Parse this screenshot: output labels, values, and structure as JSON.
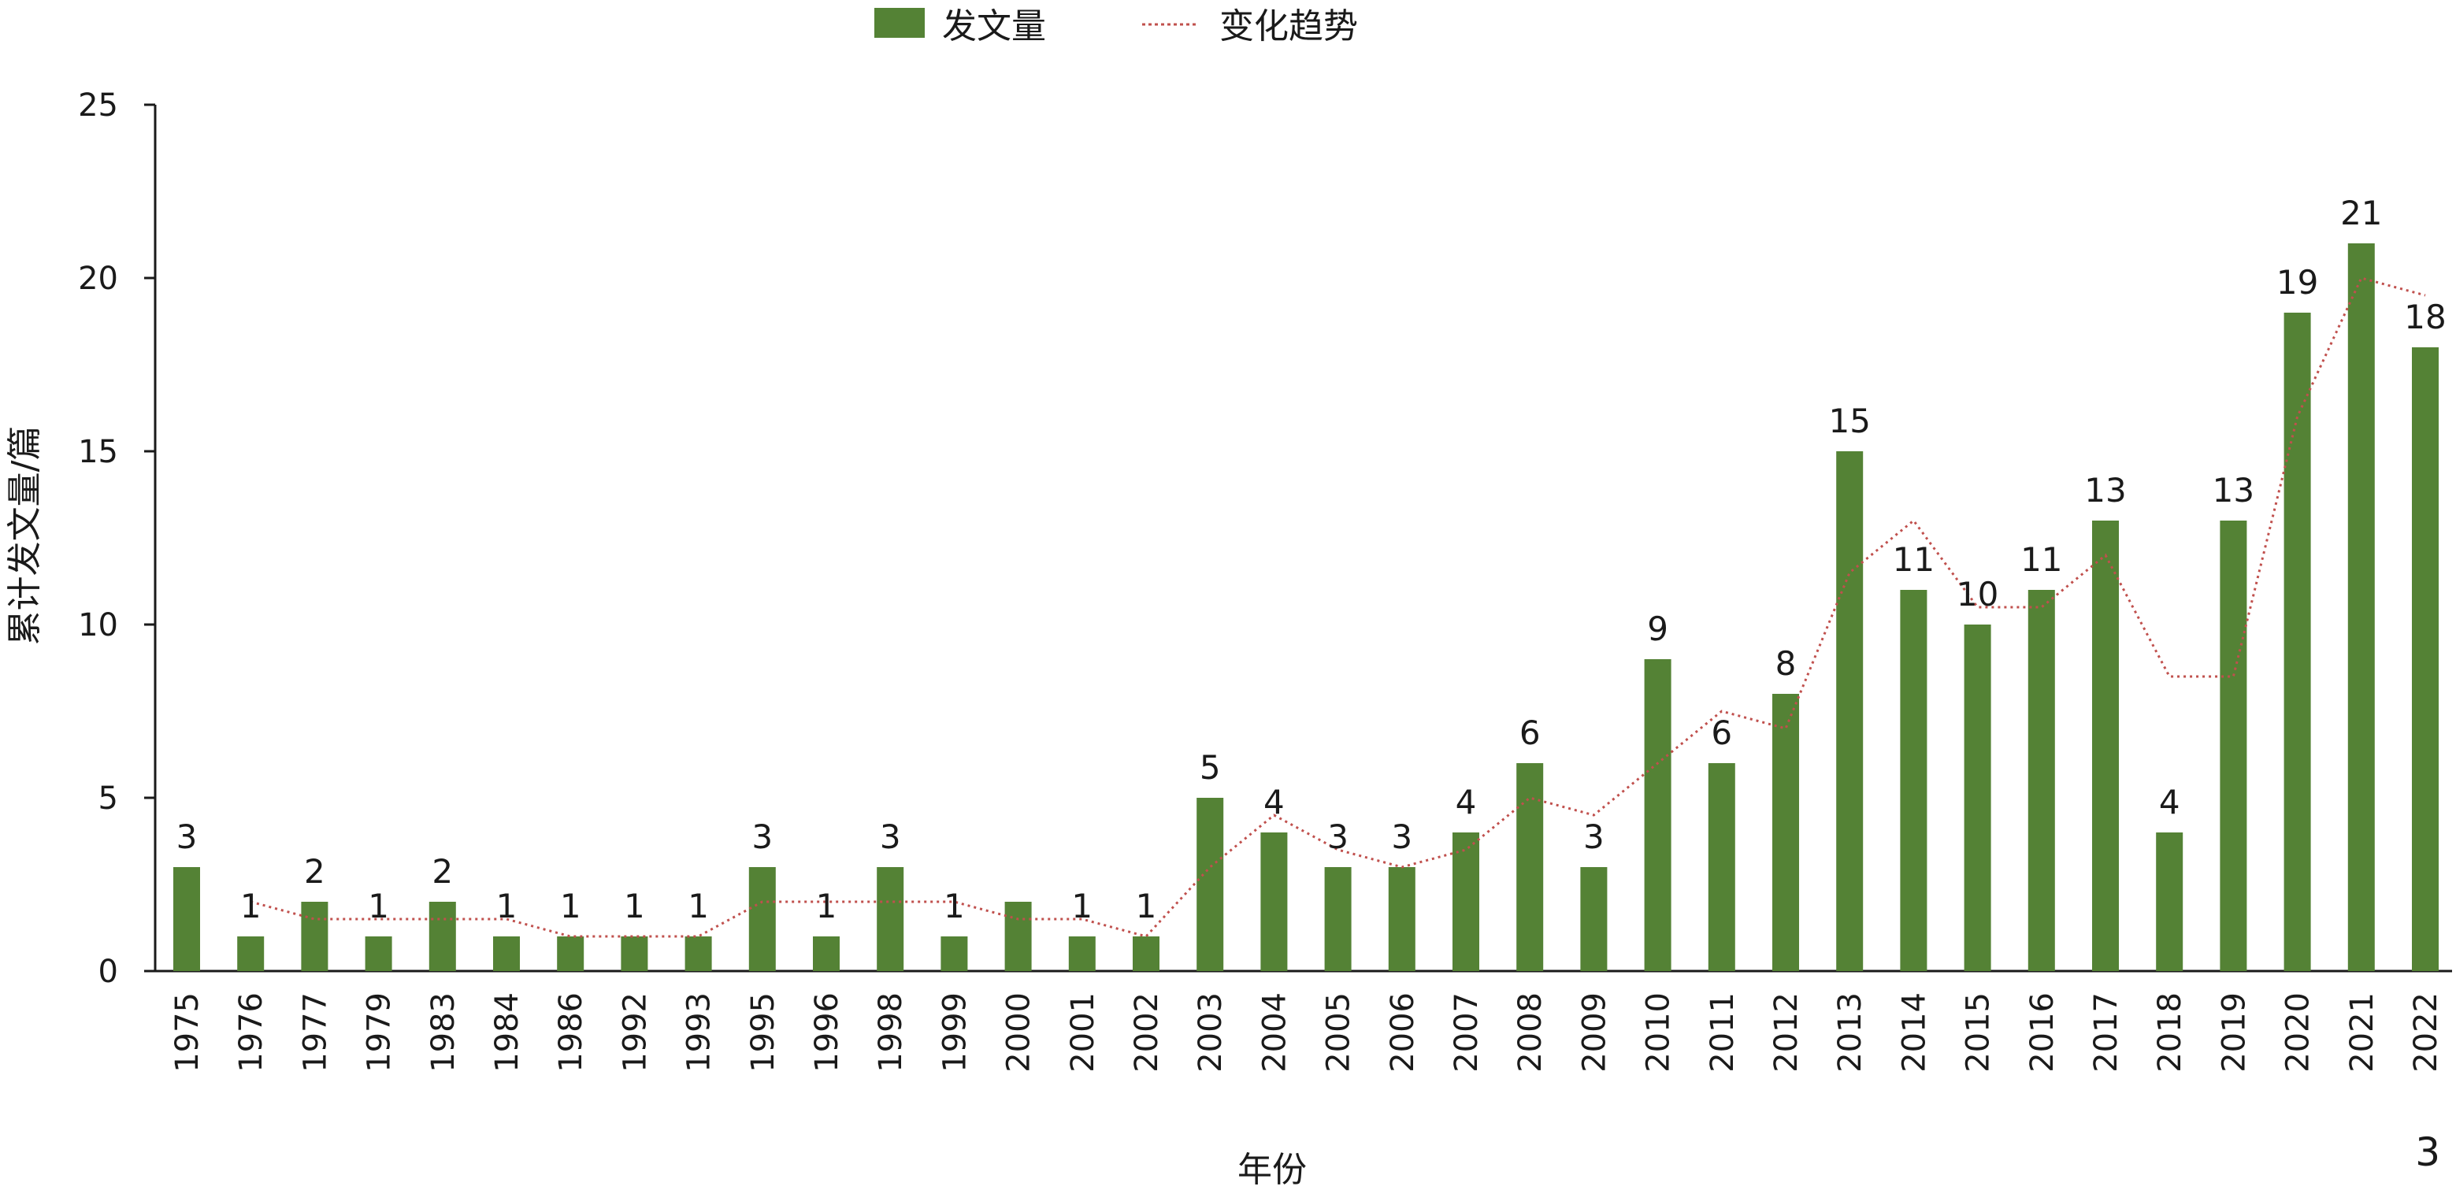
{
  "chart_data": {
    "type": "bar",
    "categories": [
      "1975",
      "1976",
      "1977",
      "1979",
      "1983",
      "1984",
      "1986",
      "1992",
      "1993",
      "1995",
      "1996",
      "1998",
      "1999",
      "2000",
      "2001",
      "2002",
      "2003",
      "2004",
      "2005",
      "2006",
      "2007",
      "2008",
      "2009",
      "2010",
      "2011",
      "2012",
      "2013",
      "2014",
      "2015",
      "2016",
      "2017",
      "2018",
      "2019",
      "2020",
      "2021",
      "2022"
    ],
    "series": [
      {
        "name": "发文量",
        "type": "bar",
        "color": "#548235",
        "values": [
          3,
          1,
          2,
          1,
          2,
          1,
          1,
          1,
          1,
          3,
          1,
          3,
          1,
          2,
          1,
          1,
          5,
          4,
          3,
          3,
          4,
          6,
          3,
          9,
          6,
          8,
          15,
          11,
          10,
          11,
          13,
          4,
          13,
          19,
          21,
          18
        ]
      },
      {
        "name": "变化趋势",
        "type": "line",
        "style": "dotted",
        "color": "#c0504d",
        "description_of_values": "2-period moving average",
        "values": [
          null,
          2,
          1.5,
          1.5,
          1.5,
          1.5,
          1,
          1,
          1,
          2,
          2,
          2,
          2,
          1.5,
          1.5,
          1,
          3,
          4.5,
          3.5,
          3,
          3.5,
          5,
          4.5,
          6,
          7.5,
          7,
          11.5,
          13,
          10.5,
          10.5,
          12,
          8.5,
          8.5,
          16,
          20,
          19.5
        ]
      }
    ],
    "data_labels": [
      "3",
      "1",
      "2",
      "1",
      "2",
      "1",
      "1",
      "1",
      "1",
      "3",
      "1",
      "3",
      "1",
      "",
      "1",
      "1",
      "5",
      "4",
      "3",
      "3",
      "4",
      "6",
      "3",
      "9",
      "6",
      "8",
      "15",
      "11",
      "10",
      "11",
      "13",
      "4",
      "13",
      "19",
      "21",
      "18"
    ],
    "xlabel": "年份",
    "ylabel": "累计发文量/篇",
    "ylim": [
      0,
      25
    ],
    "yticks": [
      "0",
      "5",
      "10",
      "15",
      "20",
      "25"
    ],
    "grid": false,
    "legend_position": "top-center",
    "panel_label": "3"
  }
}
